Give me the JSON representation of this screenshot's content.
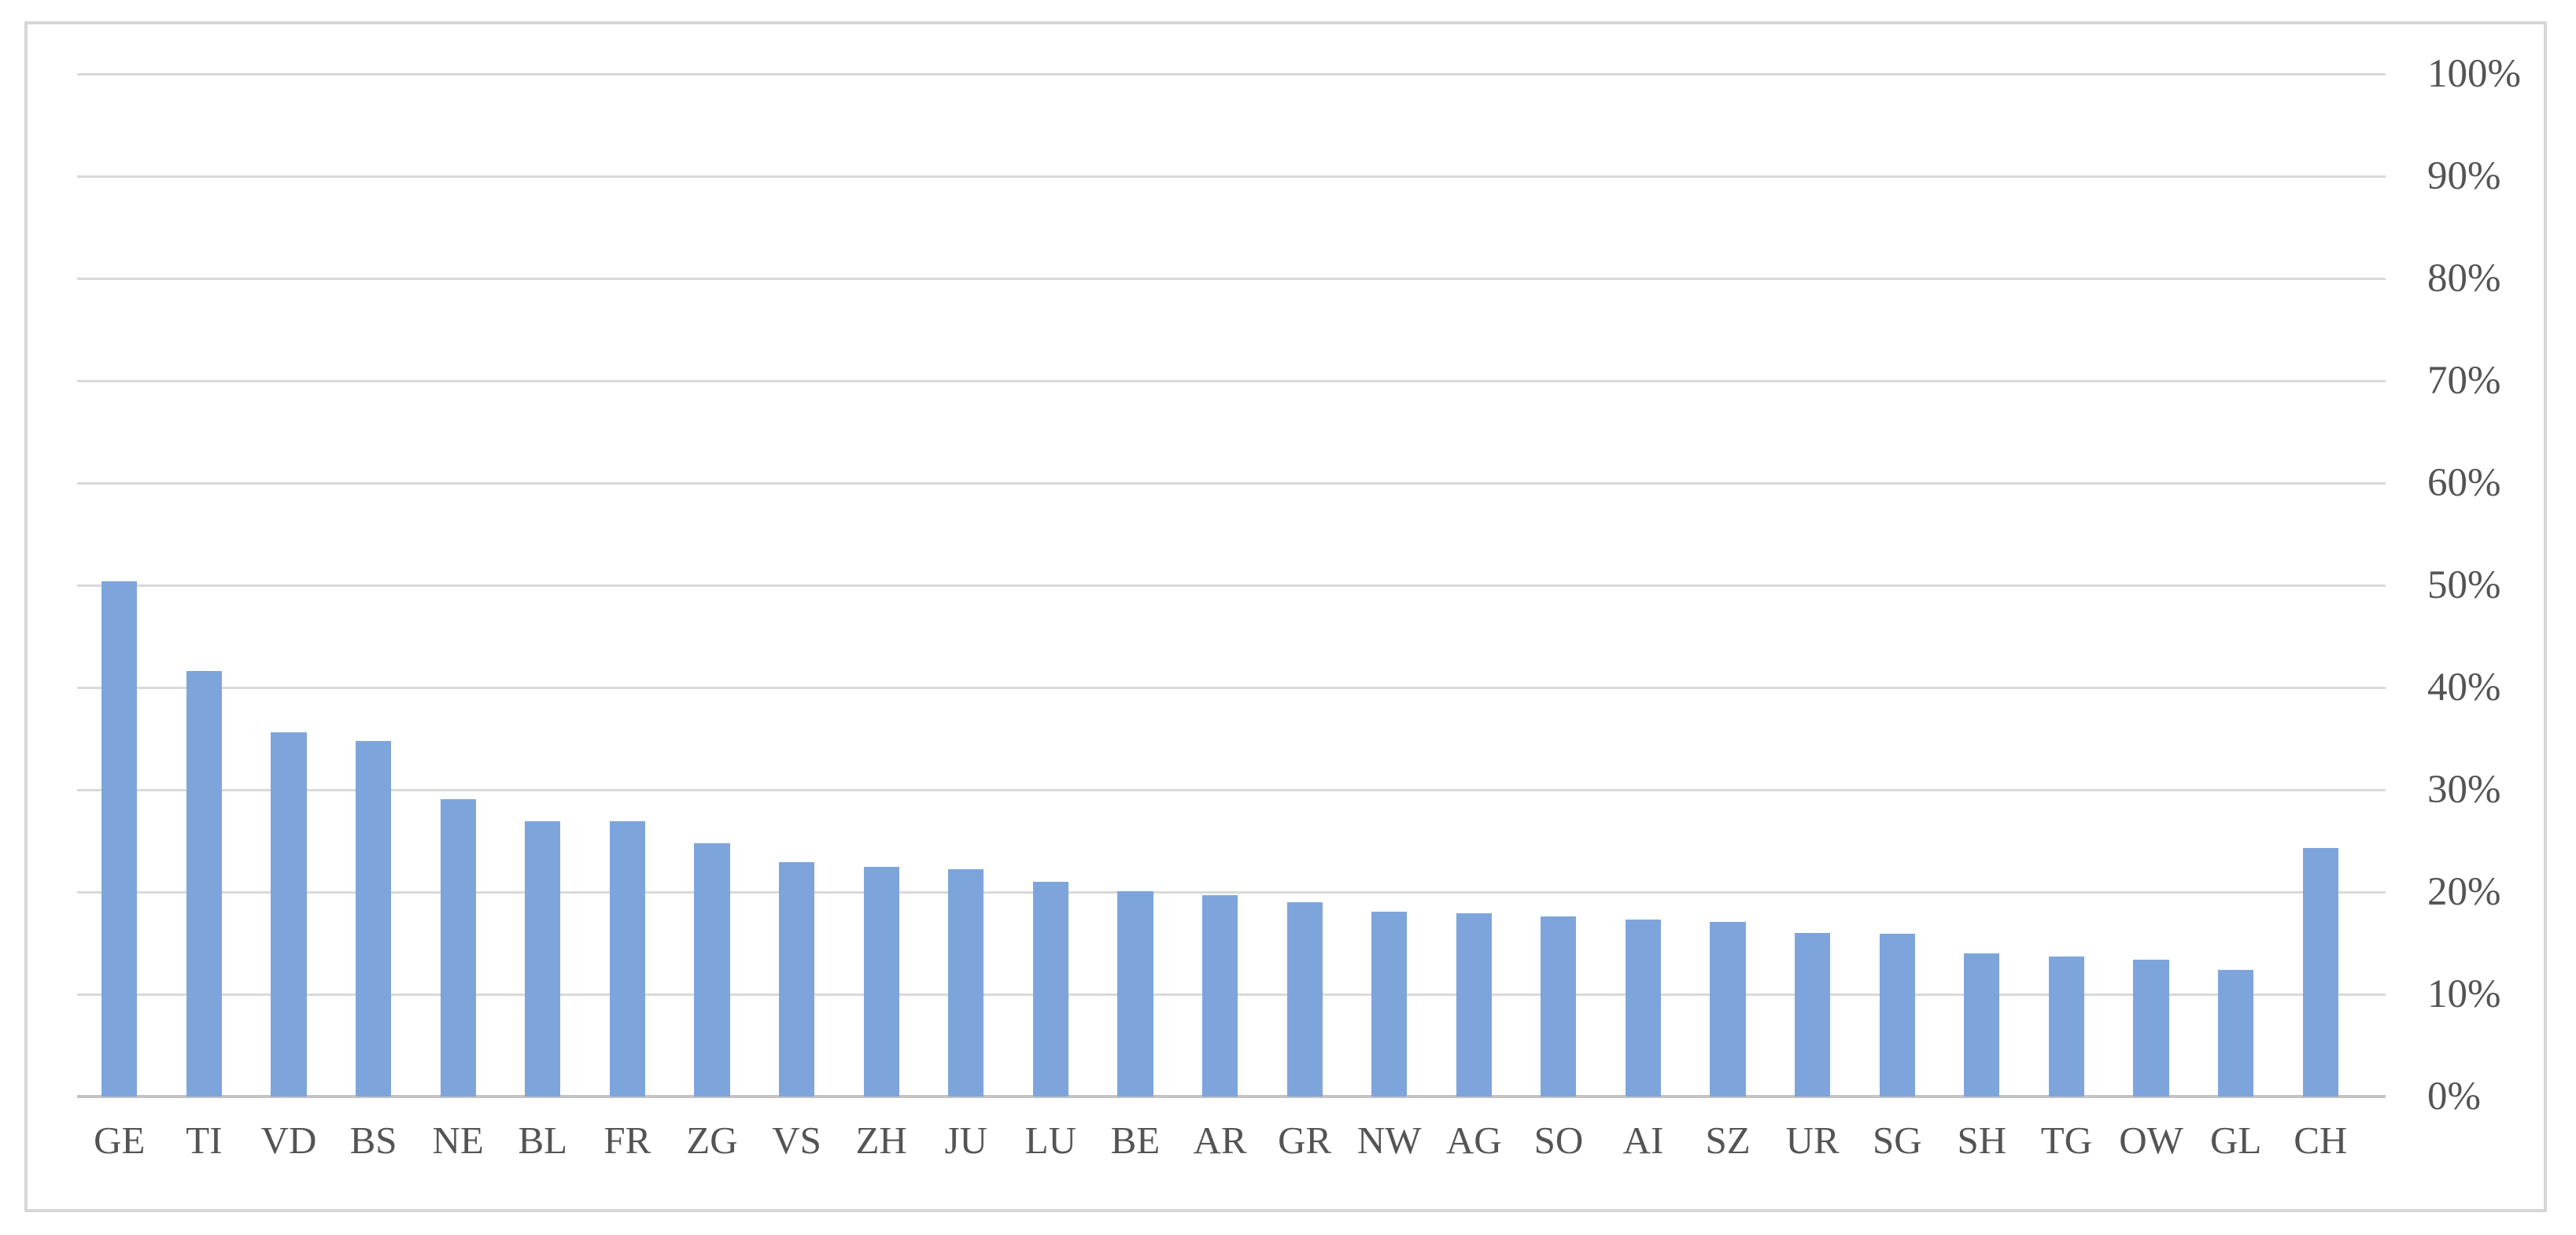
{
  "chart_data": {
    "type": "bar",
    "title": "",
    "xlabel": "",
    "ylabel": "",
    "categories": [
      "GE",
      "TI",
      "VD",
      "BS",
      "NE",
      "BL",
      "FR",
      "ZG",
      "VS",
      "ZH",
      "JU",
      "LU",
      "BE",
      "AR",
      "GR",
      "NW",
      "AG",
      "SO",
      "AI",
      "SZ",
      "UR",
      "SG",
      "SH",
      "TG",
      "OW",
      "GL",
      "CH"
    ],
    "values": [
      50.4,
      41.6,
      35.6,
      34.8,
      29.1,
      26.9,
      26.9,
      24.8,
      22.9,
      22.5,
      22.2,
      21.0,
      20.1,
      19.7,
      19.0,
      18.1,
      17.9,
      17.6,
      17.3,
      17.1,
      16.0,
      15.9,
      14.0,
      13.7,
      13.4,
      12.4,
      24.3
    ],
    "ylim": [
      0,
      100
    ],
    "y_ticks": [
      0,
      10,
      20,
      30,
      40,
      50,
      60,
      70,
      80,
      90,
      100
    ],
    "y_tick_labels": [
      "0%",
      "10%",
      "20%",
      "30%",
      "40%",
      "50%",
      "60%",
      "70%",
      "80%",
      "90%",
      "100%"
    ],
    "y_axis_side": "right",
    "grid": true,
    "legend": false,
    "colors": {
      "bar": "#7EA5DB",
      "gridline": "#D9D9D9",
      "baseline": "#C3C3C3",
      "axis_label": "#545454",
      "frame_border": "#D7D7D7"
    }
  }
}
